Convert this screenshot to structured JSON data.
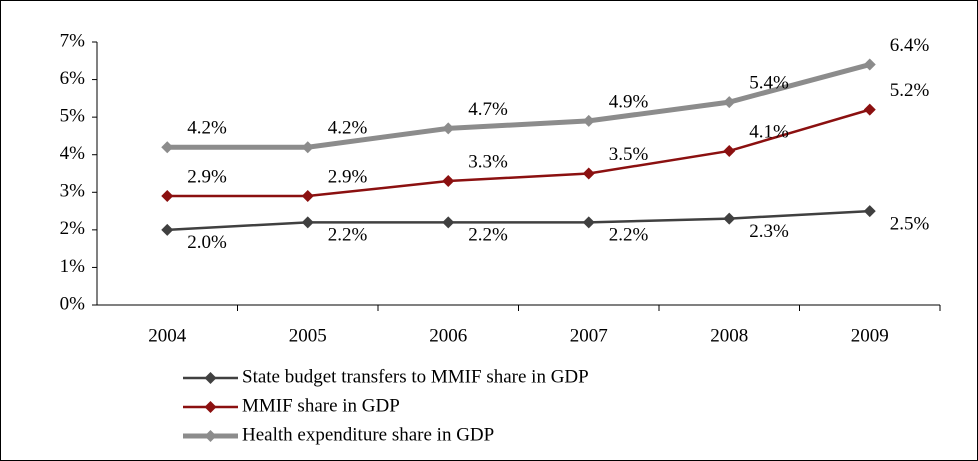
{
  "chart_data": {
    "type": "line",
    "categories": [
      "2004",
      "2005",
      "2006",
      "2007",
      "2008",
      "2009"
    ],
    "series": [
      {
        "name": "State budget transfers to MMIF share in GDP",
        "color": "#404040",
        "values": [
          2.0,
          2.2,
          2.2,
          2.2,
          2.3,
          2.5
        ],
        "value_labels": [
          "2.0%",
          "2.2%",
          "2.2%",
          "2.2%",
          "2.3%",
          "2.5%"
        ]
      },
      {
        "name": "MMIF share in GDP",
        "color": "#8b1010",
        "values": [
          2.9,
          2.9,
          3.3,
          3.5,
          4.1,
          5.2
        ],
        "value_labels": [
          "2.9%",
          "2.9%",
          "3.3%",
          "3.5%",
          "4.1%",
          "5.2%"
        ]
      },
      {
        "name": "Health expenditure share in GDP",
        "color": "#8c8c8c",
        "values": [
          4.2,
          4.2,
          4.7,
          4.9,
          5.4,
          6.4
        ],
        "value_labels": [
          "4.2%",
          "4.2%",
          "4.7%",
          "4.9%",
          "5.4%",
          "6.4%"
        ]
      }
    ],
    "ylim": [
      0,
      7
    ],
    "yticks": [
      {
        "value": 0,
        "label": "0%"
      },
      {
        "value": 1,
        "label": "1%"
      },
      {
        "value": 2,
        "label": "2%"
      },
      {
        "value": 3,
        "label": "3%"
      },
      {
        "value": 4,
        "label": "4%"
      },
      {
        "value": 5,
        "label": "5%"
      },
      {
        "value": 6,
        "label": "6%"
      },
      {
        "value": 7,
        "label": "7%"
      }
    ],
    "grid": false,
    "legend": "bottom"
  }
}
